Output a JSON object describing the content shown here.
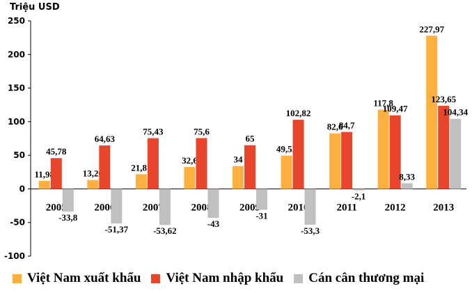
{
  "chart_data": {
    "type": "bar",
    "unit_label": "Triệu USD",
    "categories": [
      "2005",
      "2006",
      "2007",
      "2008",
      "2009",
      "2010",
      "2011",
      "2012",
      "2013"
    ],
    "series": [
      {
        "name": "Việt Nam xuất khẩu",
        "color": "#FBB040",
        "values": [
          11.98,
          13.26,
          21.81,
          32.6,
          34,
          49.52,
          82.6,
          117.8,
          227.97
        ],
        "labels": [
          "11,98",
          "13,26",
          "21,81",
          "32,6",
          "34",
          "49,52",
          "82,6",
          "117,8",
          "227,97"
        ]
      },
      {
        "name": "Việt Nam nhập khẩu",
        "color": "#E8452C",
        "values": [
          45.78,
          64.63,
          75.43,
          75.6,
          65,
          102.82,
          84.7,
          109.47,
          123.65
        ],
        "labels": [
          "45,78",
          "64,63",
          "75,43",
          "75,6",
          "65",
          "102,82",
          "84,7",
          "109,47",
          "123,65"
        ]
      },
      {
        "name": "Cán cân thương mại",
        "color": "#C0C0C0",
        "values": [
          -33.8,
          -51.37,
          -53.62,
          -43,
          -31,
          -53.3,
          -2.1,
          8.33,
          104.34
        ],
        "labels": [
          "-33,8",
          "-51,37",
          "-53,62",
          "-43",
          "-31",
          "-53,3",
          "-2,1",
          "8,33",
          "104,34"
        ]
      }
    ],
    "y_ticks": [
      250,
      200,
      150,
      100,
      50,
      0,
      -50,
      -100
    ],
    "ylim": [
      -100,
      250
    ],
    "grid": false,
    "legend_position": "bottom"
  }
}
